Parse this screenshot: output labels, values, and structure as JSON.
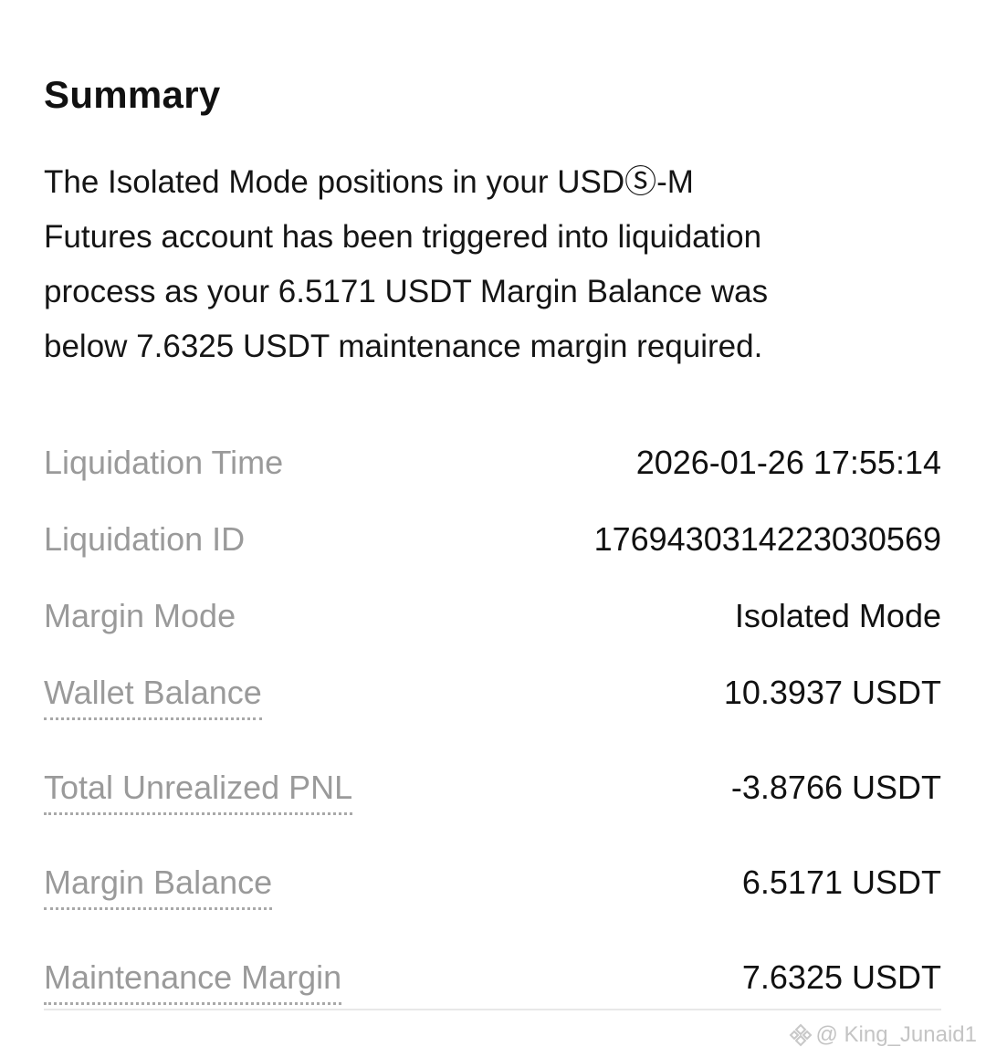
{
  "summary": {
    "title": "Summary",
    "lines": [
      "The Isolated Mode positions in your USDⓈ-M",
      "Futures account has been triggered into liquidation",
      "process as your 6.5171 USDT Margin Balance was",
      "below 7.6325 USDT maintenance margin required."
    ]
  },
  "rows": [
    {
      "label": "Liquidation Time",
      "value": "2026-01-26 17:55:14"
    },
    {
      "label": "Liquidation ID",
      "value": "1769430314223030569"
    },
    {
      "label": "Margin Mode",
      "value": "Isolated Mode"
    },
    {
      "label": "Wallet Balance",
      "value": "10.3937 USDT"
    },
    {
      "label": "Total Unrealized PNL",
      "value": "-3.8766 USDT"
    },
    {
      "label": "Margin Balance",
      "value": "6.5171 USDT"
    },
    {
      "label": "Maintenance Margin",
      "value": "7.6325 USDT"
    }
  ],
  "watermark": {
    "icon": "binance-logo-icon",
    "text": "@ King_Junaid1"
  }
}
